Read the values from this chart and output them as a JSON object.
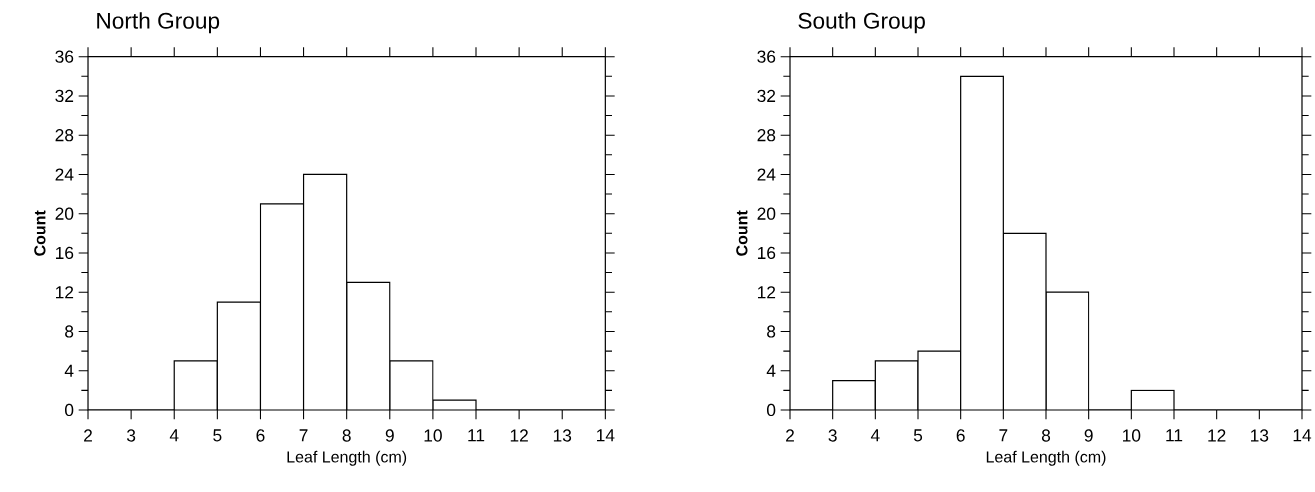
{
  "chart_data": [
    {
      "type": "histogram",
      "title": "North Group",
      "xlabel": "Leaf Length (cm)",
      "ylabel": "Count",
      "bins": [
        2,
        3,
        4,
        5,
        6,
        7,
        8,
        9,
        10,
        11,
        12,
        13,
        14
      ],
      "values": [
        0,
        0,
        5,
        11,
        21,
        24,
        13,
        5,
        1,
        0,
        0,
        0
      ],
      "xlim": [
        2,
        14
      ],
      "ylim": [
        0,
        36
      ],
      "xticks": [
        2,
        3,
        4,
        5,
        6,
        7,
        8,
        9,
        10,
        11,
        12,
        13,
        14
      ],
      "yticks": [
        0,
        4,
        8,
        12,
        16,
        20,
        24,
        28,
        32,
        36
      ]
    },
    {
      "type": "histogram",
      "title": "South Group",
      "xlabel": "Leaf Length (cm)",
      "ylabel": "Count",
      "bins": [
        2,
        3,
        4,
        5,
        6,
        7,
        8,
        9,
        10,
        11,
        12,
        13,
        14
      ],
      "values": [
        0,
        3,
        5,
        6,
        34,
        18,
        12,
        0,
        2,
        0,
        0,
        0
      ],
      "xlim": [
        2,
        14
      ],
      "ylim": [
        0,
        36
      ],
      "xticks": [
        2,
        3,
        4,
        5,
        6,
        7,
        8,
        9,
        10,
        11,
        12,
        13,
        14
      ],
      "yticks": [
        0,
        4,
        8,
        12,
        16,
        20,
        24,
        28,
        32,
        36
      ]
    }
  ]
}
